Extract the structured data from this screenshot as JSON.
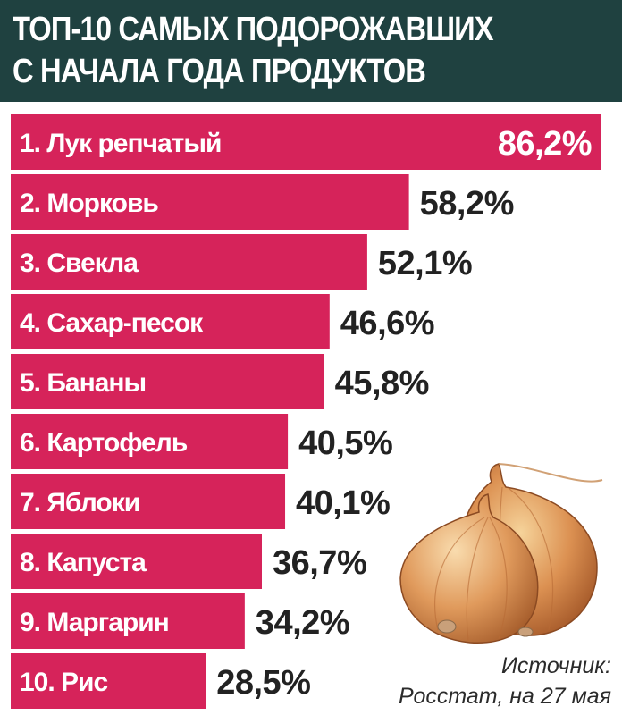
{
  "header": {
    "title_line1": "ТОП-10 САМЫХ ПОДОРОЖАВШИХ",
    "title_line2": "С НАЧАЛА ГОДА ПРОДУКТОВ"
  },
  "source": {
    "line1": "Источник:",
    "line2": "Росстат, на 27 мая"
  },
  "colors": {
    "bar": "#d6235a",
    "header": "#1f4140"
  },
  "chart_data": {
    "type": "bar",
    "orientation": "horizontal",
    "title": "ТОП-10 САМЫХ ПОДОРОЖАВШИХ С НАЧАЛА ГОДА ПРОДУКТОВ",
    "categories": [
      "1. Лук репчатый",
      "2. Морковь",
      "3. Свекла",
      "4. Сахар-песок",
      "5. Бананы",
      "6. Картофель",
      "7. Яблоки",
      "8. Капуста",
      "9. Маргарин",
      "10. Рис"
    ],
    "values": [
      86.2,
      58.2,
      52.1,
      46.6,
      45.8,
      40.5,
      40.1,
      36.7,
      34.2,
      28.5
    ],
    "value_labels": [
      "86,2%",
      "58,2%",
      "52,1%",
      "46,6%",
      "45,8%",
      "40,5%",
      "40,1%",
      "36,7%",
      "34,2%",
      "28,5%"
    ],
    "unit": "%"
  }
}
